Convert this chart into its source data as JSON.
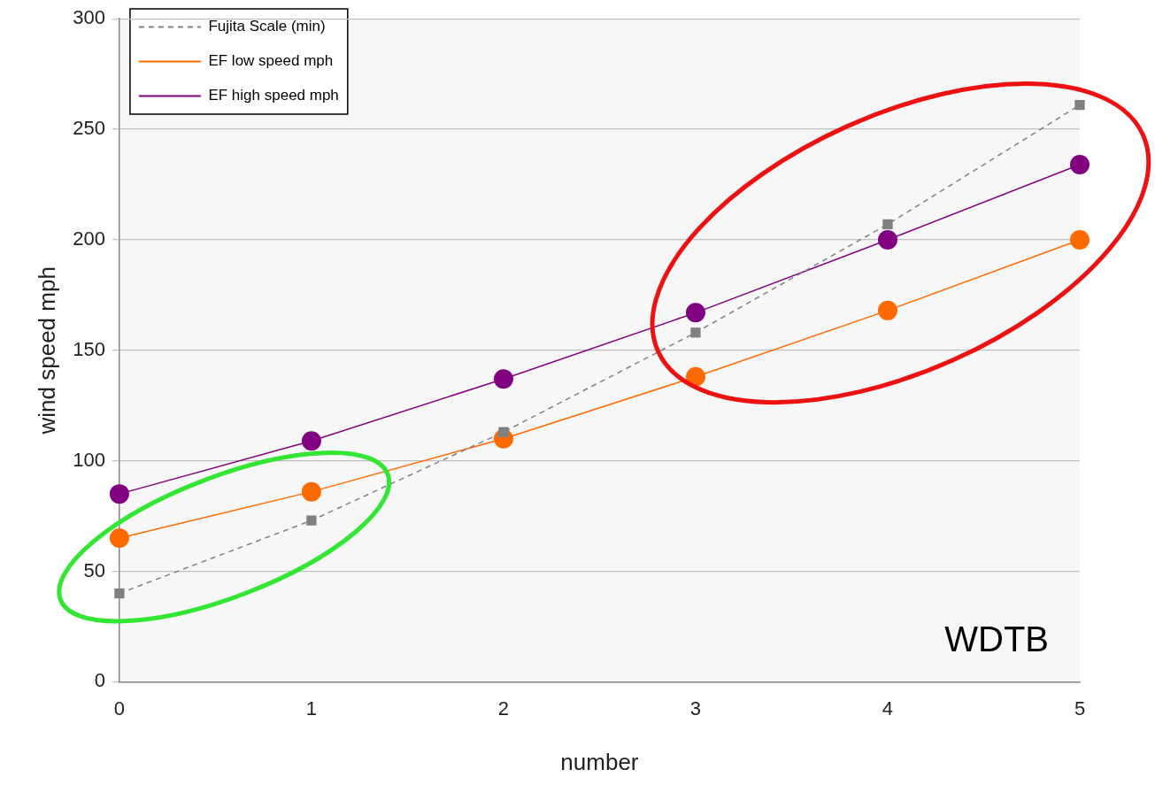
{
  "chart_data": {
    "type": "line",
    "xlabel": "number",
    "ylabel": "wind speed mph",
    "x": [
      0,
      1,
      2,
      3,
      4,
      5
    ],
    "xlim": [
      0,
      5
    ],
    "xticks": [
      0,
      1,
      2,
      3,
      4,
      5
    ],
    "ylim": [
      0,
      300
    ],
    "yticks": [
      0,
      50,
      100,
      150,
      200,
      250,
      300
    ],
    "grid": "y",
    "legend": "top left",
    "annotations": [
      "WDTB"
    ],
    "series": [
      {
        "name": "Fujita Scale (min)",
        "color": "#808080",
        "marker": "square",
        "line_style": "dashed",
        "values": [
          40,
          73,
          113,
          158,
          207,
          261
        ]
      },
      {
        "name": "EF low speed mph",
        "color": "#ff6a00",
        "marker": "circle",
        "line_style": "solid",
        "values": [
          65,
          86,
          110,
          138,
          168,
          200
        ]
      },
      {
        "name": "EF high speed mph",
        "color": "#800080",
        "marker": "circle",
        "line_style": "solid",
        "values": [
          85,
          109,
          137,
          167,
          200,
          234
        ]
      }
    ]
  }
}
